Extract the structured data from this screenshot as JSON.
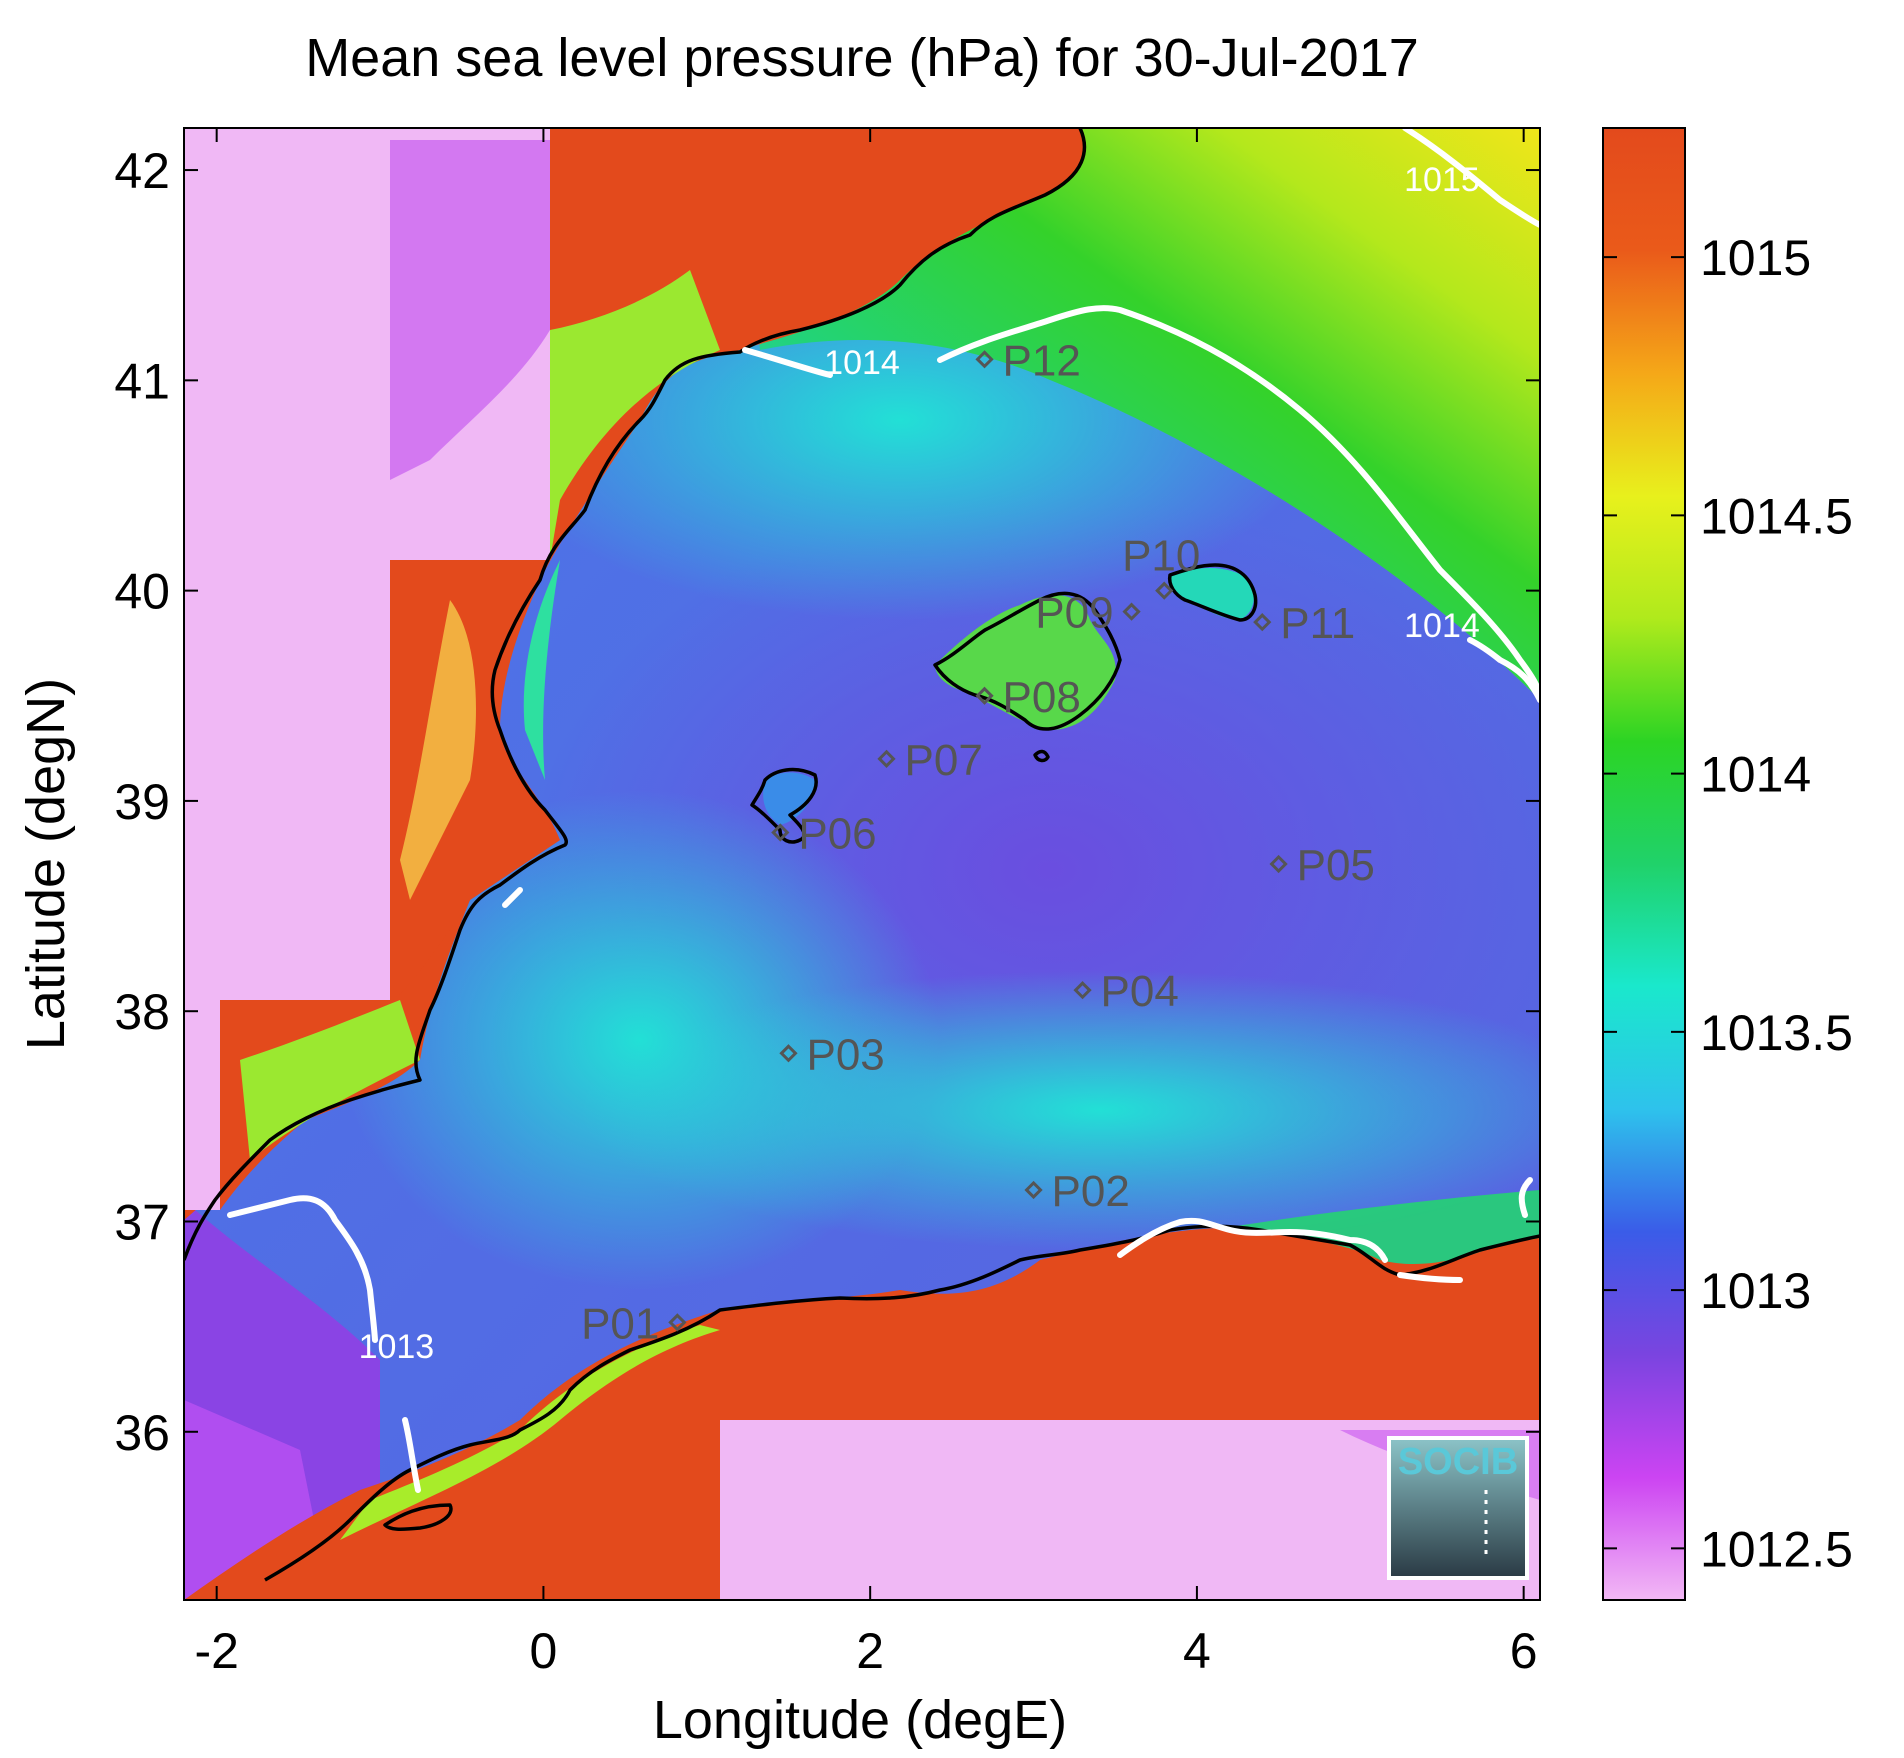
{
  "title": "Mean sea level pressure (hPa) for 30-Jul-2017",
  "xlabel": "Longitude (degE)",
  "ylabel": "Latitude (degN)",
  "colors": {
    "land_high": "#e34a1c",
    "land_low": "#f0b8f5",
    "coastline": "#000000",
    "contour": "#ffffff",
    "station": "#555555"
  },
  "chart_data": {
    "type": "heatmap",
    "map": "pressure field with coastline",
    "xlim": [
      -2.2,
      6.1
    ],
    "ylim": [
      35.2,
      42.2
    ],
    "xticks": [
      {
        "v": -2,
        "label": "-2"
      },
      {
        "v": 0,
        "label": "0"
      },
      {
        "v": 2,
        "label": "2"
      },
      {
        "v": 4,
        "label": "4"
      },
      {
        "v": 6,
        "label": "6"
      }
    ],
    "yticks": [
      {
        "v": 36,
        "label": "36"
      },
      {
        "v": 37,
        "label": "37"
      },
      {
        "v": 38,
        "label": "38"
      },
      {
        "v": 39,
        "label": "39"
      },
      {
        "v": 40,
        "label": "40"
      },
      {
        "v": 41,
        "label": "41"
      },
      {
        "v": 42,
        "label": "42"
      }
    ],
    "colorbar": {
      "range": [
        1012.4,
        1015.25
      ],
      "ticks": [
        {
          "v": 1012.5,
          "label": "1012.5"
        },
        {
          "v": 1013,
          "label": "1013"
        },
        {
          "v": 1013.5,
          "label": "1013.5"
        },
        {
          "v": 1014,
          "label": "1014"
        },
        {
          "v": 1014.5,
          "label": "1014.5"
        },
        {
          "v": 1015,
          "label": "1015"
        }
      ],
      "colors": [
        "#f2b8f5",
        "#cc44f2",
        "#7a44e0",
        "#3a5ce8",
        "#2ec2ec",
        "#1ae8cc",
        "#20d26a",
        "#2cd424",
        "#b0ea1c",
        "#e8f01c",
        "#f5a818",
        "#ea5a1a",
        "#e34a1c"
      ]
    },
    "contour_labels": [
      {
        "text": "1015",
        "lon": 5.5,
        "lat": 41.9
      },
      {
        "text": "1014",
        "lon": 1.95,
        "lat": 41.03
      },
      {
        "text": "1014",
        "lon": 5.5,
        "lat": 39.78
      },
      {
        "text": "1013",
        "lon": -0.9,
        "lat": 36.35
      }
    ],
    "stations": [
      {
        "name": "P01",
        "lon": 0.82,
        "lat": 36.52,
        "anchor": "end"
      },
      {
        "name": "P02",
        "lon": 3.0,
        "lat": 37.15,
        "anchor": "start"
      },
      {
        "name": "P03",
        "lon": 1.5,
        "lat": 37.8,
        "anchor": "start"
      },
      {
        "name": "P04",
        "lon": 3.3,
        "lat": 38.1,
        "anchor": "start"
      },
      {
        "name": "P05",
        "lon": 4.5,
        "lat": 38.7,
        "anchor": "start"
      },
      {
        "name": "P06",
        "lon": 1.45,
        "lat": 38.85,
        "anchor": "start"
      },
      {
        "name": "P07",
        "lon": 2.1,
        "lat": 39.2,
        "anchor": "start"
      },
      {
        "name": "P08",
        "lon": 2.7,
        "lat": 39.5,
        "anchor": "start"
      },
      {
        "name": "P09",
        "lon": 3.6,
        "lat": 39.9,
        "anchor": "end"
      },
      {
        "name": "P10",
        "lon": 3.8,
        "lat": 40.0,
        "anchor": "above"
      },
      {
        "name": "P11",
        "lon": 4.4,
        "lat": 39.85,
        "anchor": "start"
      },
      {
        "name": "P12",
        "lon": 2.7,
        "lat": 41.1,
        "anchor": "start"
      }
    ],
    "logo": "SOCIB"
  }
}
